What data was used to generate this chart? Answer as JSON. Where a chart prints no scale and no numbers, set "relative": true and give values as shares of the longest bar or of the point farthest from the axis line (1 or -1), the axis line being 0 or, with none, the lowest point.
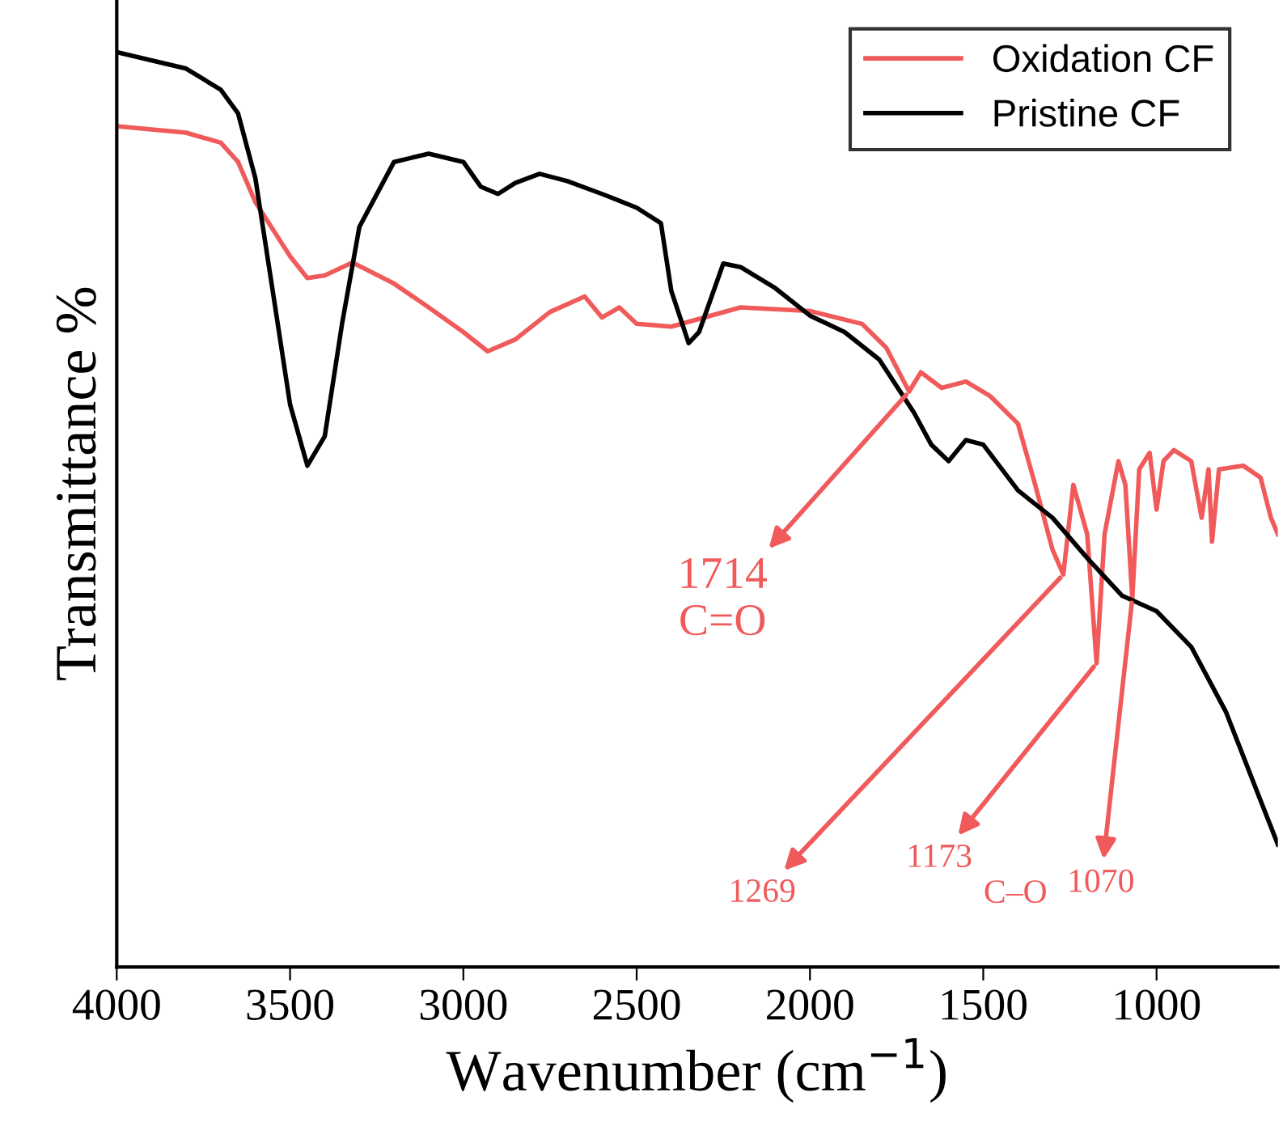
{
  "chart_data": {
    "type": "line",
    "relative": true,
    "xlabel": "Wavenumber (cm$^{−1}$)",
    "ylabel": "Transmittance %",
    "xlim": [
      4000,
      650
    ],
    "xticks": [
      4000,
      3500,
      3000,
      2500,
      2000,
      1500,
      1000
    ],
    "legend": "top right",
    "grid": false,
    "tick_labels": "x",
    "series": [
      {
        "name": "Oxidation CF",
        "color": "#f05a5a",
        "x": [
          4000,
          3800,
          3700,
          3650,
          3600,
          3500,
          3450,
          3400,
          3320,
          3200,
          3100,
          3000,
          2930,
          2850,
          2750,
          2650,
          2600,
          2550,
          2500,
          2400,
          2200,
          2000,
          1850,
          1780,
          1714,
          1680,
          1620,
          1550,
          1480,
          1400,
          1350,
          1300,
          1269,
          1240,
          1200,
          1173,
          1150,
          1110,
          1090,
          1070,
          1050,
          1020,
          1000,
          980,
          950,
          900,
          870,
          850,
          840,
          820,
          750,
          700,
          670,
          650
        ],
        "values": [
          0.919,
          0.912,
          0.901,
          0.88,
          0.836,
          0.777,
          0.753,
          0.756,
          0.77,
          0.747,
          0.721,
          0.694,
          0.673,
          0.686,
          0.716,
          0.733,
          0.71,
          0.721,
          0.703,
          0.7,
          0.721,
          0.717,
          0.703,
          0.677,
          0.629,
          0.65,
          0.633,
          0.64,
          0.624,
          0.594,
          0.527,
          0.456,
          0.429,
          0.527,
          0.473,
          0.332,
          0.473,
          0.553,
          0.527,
          0.403,
          0.544,
          0.562,
          0.5,
          0.553,
          0.565,
          0.553,
          0.491,
          0.544,
          0.465,
          0.544,
          0.548,
          0.535,
          0.491,
          0.473
        ]
      },
      {
        "name": "Pristine CF",
        "color": "#000000",
        "x": [
          4000,
          3800,
          3700,
          3650,
          3600,
          3550,
          3500,
          3450,
          3400,
          3350,
          3300,
          3200,
          3100,
          3000,
          2950,
          2900,
          2850,
          2780,
          2700,
          2600,
          2500,
          2430,
          2400,
          2350,
          2320,
          2250,
          2200,
          2100,
          2000,
          1900,
          1800,
          1700,
          1650,
          1600,
          1550,
          1500,
          1400,
          1300,
          1200,
          1100,
          1000,
          900,
          800,
          700,
          650
        ],
        "values": [
          1.0,
          0.982,
          0.959,
          0.933,
          0.862,
          0.739,
          0.615,
          0.548,
          0.58,
          0.703,
          0.809,
          0.88,
          0.889,
          0.88,
          0.853,
          0.845,
          0.857,
          0.867,
          0.859,
          0.845,
          0.83,
          0.813,
          0.739,
          0.682,
          0.694,
          0.769,
          0.765,
          0.742,
          0.712,
          0.694,
          0.664,
          0.606,
          0.571,
          0.553,
          0.576,
          0.571,
          0.521,
          0.491,
          0.447,
          0.406,
          0.389,
          0.35,
          0.279,
          0.182,
          0.134
        ]
      }
    ],
    "annotations": [
      {
        "text": "1714\nC=O",
        "x": 1714,
        "y": 0.629
      },
      {
        "text": "1269",
        "x": 1269,
        "y": 0.429
      },
      {
        "text": "1173",
        "x": 1173,
        "y": 0.332
      },
      {
        "text": "1070",
        "x": 1070,
        "y": 0.403
      },
      "C–O"
    ]
  }
}
